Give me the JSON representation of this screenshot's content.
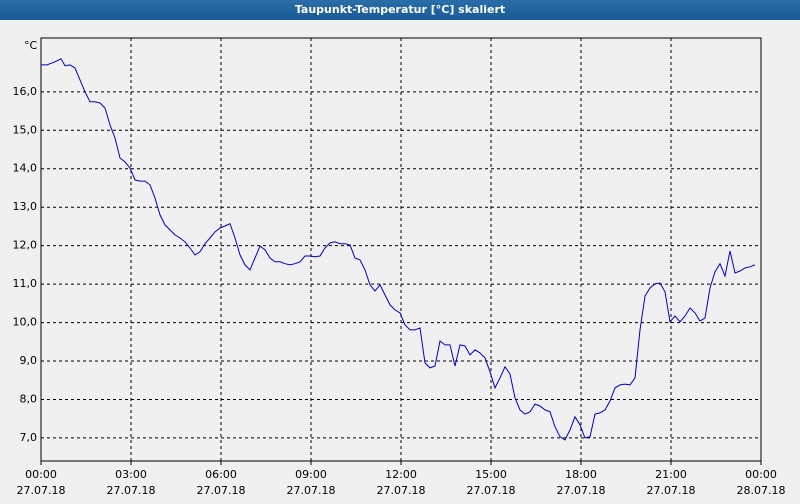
{
  "chart_data": {
    "type": "line",
    "title": "Taupunkt-Temperatur [°C] skaliert",
    "ylabel": "°C",
    "xlim": [
      0,
      1440
    ],
    "xticks": [
      {
        "value": 0,
        "label": "00:00",
        "date": "27.07.18"
      },
      {
        "value": 180,
        "label": "03:00",
        "date": "27.07.18"
      },
      {
        "value": 360,
        "label": "06:00",
        "date": "27.07.18"
      },
      {
        "value": 540,
        "label": "09:00",
        "date": "27.07.18"
      },
      {
        "value": 720,
        "label": "12:00",
        "date": "27.07.18"
      },
      {
        "value": 900,
        "label": "15:00",
        "date": "27.07.18"
      },
      {
        "value": 1080,
        "label": "18:00",
        "date": "27.07.18"
      },
      {
        "value": 1260,
        "label": "21:00",
        "date": "27.07.18"
      },
      {
        "value": 1440,
        "label": "00:00",
        "date": "28.07.18"
      }
    ],
    "ylim": [
      6.4,
      17.4
    ],
    "yticks": [
      {
        "value": 7,
        "label": "7,0"
      },
      {
        "value": 8,
        "label": "8,0"
      },
      {
        "value": 9,
        "label": "9,0"
      },
      {
        "value": 10,
        "label": "10,0"
      },
      {
        "value": 11,
        "label": "11,0"
      },
      {
        "value": 12,
        "label": "12,0"
      },
      {
        "value": 13,
        "label": "13,0"
      },
      {
        "value": 14,
        "label": "14,0"
      },
      {
        "value": 15,
        "label": "15,0"
      },
      {
        "value": 16,
        "label": "16,0"
      }
    ],
    "grid": true,
    "color": "#0000c8",
    "x": [
      0,
      12,
      28,
      40,
      48,
      58,
      68,
      78,
      88,
      98,
      108,
      118,
      128,
      138,
      148,
      158,
      168,
      178,
      188,
      198,
      208,
      218,
      228,
      238,
      248,
      258,
      268,
      278,
      288,
      298,
      308,
      318,
      328,
      338,
      348,
      358,
      368,
      378,
      388,
      398,
      408,
      418,
      428,
      438,
      448,
      458,
      468,
      478,
      488,
      498,
      508,
      518,
      528,
      538,
      548,
      558,
      568,
      578,
      588,
      598,
      608,
      618,
      628,
      638,
      648,
      658,
      668,
      678,
      688,
      698,
      708,
      718,
      728,
      738,
      748,
      758,
      768,
      778,
      788,
      798,
      808,
      818,
      828,
      838,
      848,
      858,
      868,
      878,
      888,
      898,
      908,
      918,
      928,
      938,
      948,
      958,
      968,
      978,
      988,
      998,
      1008,
      1018,
      1028,
      1038,
      1048,
      1058,
      1068,
      1078,
      1088,
      1098,
      1108,
      1118,
      1128,
      1138,
      1148,
      1158,
      1168,
      1178,
      1188,
      1198,
      1208,
      1218,
      1228,
      1238,
      1248,
      1258,
      1268,
      1278,
      1288,
      1298,
      1308,
      1318,
      1328,
      1338,
      1348,
      1358,
      1368,
      1378,
      1388,
      1398,
      1408,
      1418,
      1428
    ],
    "values": [
      16.7,
      16.7,
      16.78,
      16.86,
      16.68,
      16.7,
      16.62,
      16.31,
      16.0,
      15.74,
      15.74,
      15.71,
      15.58,
      15.14,
      14.8,
      14.28,
      14.18,
      14.02,
      13.71,
      13.68,
      13.68,
      13.58,
      13.24,
      12.8,
      12.54,
      12.41,
      12.28,
      12.2,
      12.1,
      11.94,
      11.76,
      11.84,
      12.05,
      12.2,
      12.36,
      12.46,
      12.51,
      12.57,
      12.2,
      11.76,
      11.5,
      11.37,
      11.68,
      11.99,
      11.89,
      11.68,
      11.58,
      11.58,
      11.53,
      11.5,
      11.53,
      11.58,
      11.73,
      11.73,
      11.71,
      11.73,
      11.94,
      12.07,
      12.1,
      12.05,
      12.05,
      12.02,
      11.68,
      11.63,
      11.37,
      10.98,
      10.82,
      10.98,
      10.72,
      10.46,
      10.33,
      10.25,
      9.94,
      9.81,
      9.81,
      9.86,
      8.95,
      8.82,
      8.87,
      9.52,
      9.42,
      9.42,
      8.87,
      9.42,
      9.39,
      9.16,
      9.29,
      9.21,
      9.08,
      8.72,
      8.3,
      8.56,
      8.85,
      8.66,
      8.04,
      7.73,
      7.62,
      7.68,
      7.88,
      7.83,
      7.73,
      7.68,
      7.29,
      7.03,
      6.95,
      7.21,
      7.55,
      7.34,
      7.0,
      7.03,
      7.62,
      7.65,
      7.73,
      7.96,
      8.3,
      8.38,
      8.4,
      8.38,
      8.56,
      9.81,
      10.69,
      10.9,
      11.01,
      11.03,
      10.8,
      10.02,
      10.17,
      10.02,
      10.17,
      10.38,
      10.25,
      10.04,
      10.12,
      10.9,
      11.32,
      11.53,
      11.21,
      11.86,
      11.29,
      11.34,
      11.42,
      11.45,
      11.5
    ]
  }
}
